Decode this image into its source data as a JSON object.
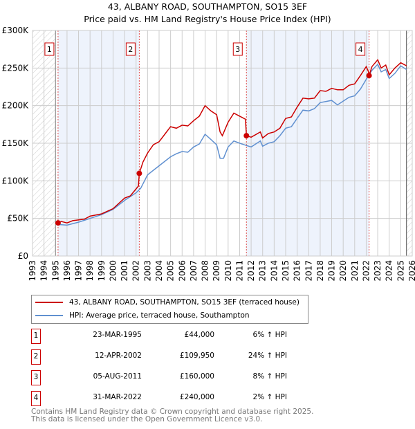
{
  "chart_data": {
    "type": "line",
    "title": "43, ALBANY ROAD, SOUTHAMPTON, SO15 3EF",
    "subtitle": "Price paid vs. HM Land Registry's House Price Index (HPI)",
    "xlim": [
      1993,
      2026
    ],
    "ylim": [
      0,
      300000
    ],
    "y_ticks": [
      0,
      50000,
      100000,
      150000,
      200000,
      250000,
      300000
    ],
    "y_tick_labels": [
      "£0",
      "£50K",
      "£100K",
      "£150K",
      "£200K",
      "£250K",
      "£300K"
    ],
    "x_ticks": [
      1993,
      1994,
      1995,
      1996,
      1997,
      1998,
      1999,
      2000,
      2001,
      2002,
      2003,
      2004,
      2005,
      2006,
      2007,
      2008,
      2009,
      2010,
      2011,
      2012,
      2013,
      2014,
      2015,
      2016,
      2017,
      2018,
      2019,
      2020,
      2021,
      2022,
      2023,
      2024,
      2025,
      2026
    ],
    "grid": true,
    "colors": {
      "property": "#cc0000",
      "hpi": "#6090d0",
      "band": "#eef3fc"
    },
    "series": [
      {
        "name": "43, ALBANY ROAD, SOUTHAMPTON, SO15 3EF (terraced house)",
        "points": [
          [
            1995.22,
            44000
          ],
          [
            1995.5,
            46000
          ],
          [
            1996,
            44000
          ],
          [
            1996.5,
            47000
          ],
          [
            1997.5,
            49000
          ],
          [
            1998,
            53000
          ],
          [
            1999,
            56000
          ],
          [
            2000,
            63000
          ],
          [
            2001,
            77000
          ],
          [
            2001.5,
            80000
          ],
          [
            2002.2,
            93000
          ],
          [
            2002.28,
            109950
          ],
          [
            2002.6,
            125000
          ],
          [
            2003,
            137000
          ],
          [
            2003.5,
            148000
          ],
          [
            2004,
            152000
          ],
          [
            2004.5,
            162000
          ],
          [
            2005,
            172000
          ],
          [
            2005.5,
            170000
          ],
          [
            2006,
            174000
          ],
          [
            2006.5,
            173000
          ],
          [
            2007,
            180000
          ],
          [
            2007.5,
            186000
          ],
          [
            2008,
            200000
          ],
          [
            2008.5,
            193000
          ],
          [
            2009,
            188000
          ],
          [
            2009.3,
            165000
          ],
          [
            2009.5,
            160000
          ],
          [
            2010,
            178000
          ],
          [
            2010.5,
            190000
          ],
          [
            2011,
            186000
          ],
          [
            2011.5,
            182000
          ],
          [
            2011.59,
            160000
          ],
          [
            2012,
            158000
          ],
          [
            2012.8,
            165000
          ],
          [
            2013,
            157000
          ],
          [
            2013.5,
            163000
          ],
          [
            2014,
            165000
          ],
          [
            2014.5,
            170000
          ],
          [
            2015,
            183000
          ],
          [
            2015.5,
            185000
          ],
          [
            2016,
            198000
          ],
          [
            2016.5,
            210000
          ],
          [
            2017,
            209000
          ],
          [
            2017.5,
            210000
          ],
          [
            2018,
            220000
          ],
          [
            2018.5,
            219000
          ],
          [
            2019,
            223000
          ],
          [
            2019.5,
            221000
          ],
          [
            2020,
            221000
          ],
          [
            2020.5,
            227000
          ],
          [
            2021,
            229000
          ],
          [
            2021.5,
            240000
          ],
          [
            2022,
            252000
          ],
          [
            2022.2,
            245000
          ],
          [
            2022.25,
            240000
          ],
          [
            2022.5,
            252000
          ],
          [
            2023,
            261000
          ],
          [
            2023.3,
            250000
          ],
          [
            2023.7,
            254000
          ],
          [
            2024,
            241000
          ],
          [
            2024.5,
            250000
          ],
          [
            2025,
            257000
          ],
          [
            2025.5,
            253000
          ]
        ]
      },
      {
        "name": "HPI: Average price, terraced house, Southampton",
        "points": [
          [
            1995.22,
            42000
          ],
          [
            1996,
            41000
          ],
          [
            1997,
            45000
          ],
          [
            1998,
            50000
          ],
          [
            1999,
            55000
          ],
          [
            2000,
            62000
          ],
          [
            2001,
            74000
          ],
          [
            2002,
            84000
          ],
          [
            2002.4,
            90000
          ],
          [
            2003,
            108000
          ],
          [
            2004,
            120000
          ],
          [
            2005,
            132000
          ],
          [
            2005.5,
            136000
          ],
          [
            2006,
            139000
          ],
          [
            2006.5,
            138000
          ],
          [
            2007,
            145000
          ],
          [
            2007.5,
            149000
          ],
          [
            2008,
            162000
          ],
          [
            2008.5,
            155000
          ],
          [
            2009,
            148000
          ],
          [
            2009.3,
            130000
          ],
          [
            2009.6,
            130000
          ],
          [
            2010,
            145000
          ],
          [
            2010.5,
            153000
          ],
          [
            2011,
            150000
          ],
          [
            2011.6,
            147000
          ],
          [
            2012,
            145000
          ],
          [
            2012.8,
            153000
          ],
          [
            2013,
            146000
          ],
          [
            2013.5,
            150000
          ],
          [
            2014,
            152000
          ],
          [
            2014.5,
            160000
          ],
          [
            2015,
            170000
          ],
          [
            2015.5,
            172000
          ],
          [
            2016,
            183000
          ],
          [
            2016.5,
            194000
          ],
          [
            2017,
            193000
          ],
          [
            2017.5,
            196000
          ],
          [
            2018,
            204000
          ],
          [
            2019,
            207000
          ],
          [
            2019.5,
            201000
          ],
          [
            2020,
            206000
          ],
          [
            2020.5,
            211000
          ],
          [
            2021,
            213000
          ],
          [
            2021.5,
            222000
          ],
          [
            2022,
            235000
          ],
          [
            2022.5,
            247000
          ],
          [
            2023,
            255000
          ],
          [
            2023.3,
            245000
          ],
          [
            2023.7,
            248000
          ],
          [
            2024,
            236000
          ],
          [
            2024.5,
            243000
          ],
          [
            2025,
            253000
          ],
          [
            2025.5,
            248000
          ]
        ]
      }
    ],
    "sales": [
      {
        "label": "1",
        "x": 1995.22,
        "price": 44000
      },
      {
        "label": "2",
        "x": 2002.28,
        "price": 109950
      },
      {
        "label": "3",
        "x": 2011.59,
        "price": 160000
      },
      {
        "label": "4",
        "x": 2022.25,
        "price": 240000
      }
    ],
    "hatch_ranges": [
      [
        1993,
        1995
      ],
      [
        2025.5,
        2026
      ]
    ]
  },
  "legend": {
    "property": "43, ALBANY ROAD, SOUTHAMPTON, SO15 3EF (terraced house)",
    "hpi": "HPI: Average price, terraced house, Southampton"
  },
  "table": [
    {
      "num": "1",
      "date": "23-MAR-1995",
      "price": "£44,000",
      "hpi": "6% ↑ HPI"
    },
    {
      "num": "2",
      "date": "12-APR-2002",
      "price": "£109,950",
      "hpi": "24% ↑ HPI"
    },
    {
      "num": "3",
      "date": "05-AUG-2011",
      "price": "£160,000",
      "hpi": "8% ↑ HPI"
    },
    {
      "num": "4",
      "date": "31-MAR-2022",
      "price": "£240,000",
      "hpi": "2% ↑ HPI"
    }
  ],
  "footer": {
    "line1": "Contains HM Land Registry data © Crown copyright and database right 2025.",
    "line2": "This data is licensed under the Open Government Licence v3.0."
  }
}
